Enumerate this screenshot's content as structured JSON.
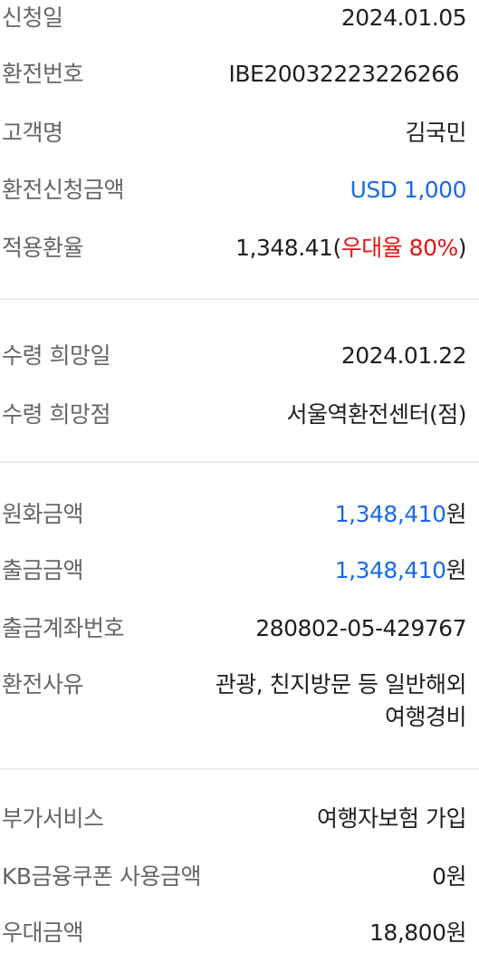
{
  "section1": {
    "apply_date_label": "신청일",
    "apply_date_value": "2024.01.05",
    "exchange_no_label": "환전번호",
    "exchange_no_value": "IBE20032223226266",
    "customer_label": "고객명",
    "customer_value": "김국민",
    "request_amount_label": "환전신청금액",
    "request_amount_value": "USD 1,000",
    "rate_label": "적용환율",
    "rate_value": "1,348.41",
    "rate_paren_open": "(",
    "rate_discount": "우대율 80%",
    "rate_paren_close": ")"
  },
  "section2": {
    "pickup_date_label": "수령 희망일",
    "pickup_date_value": "2024.01.22",
    "pickup_branch_label": "수령 희망점",
    "pickup_branch_value": "서울역환전센터(점)"
  },
  "section3": {
    "krw_amount_label": "원화금액",
    "krw_amount_number": "1,348,410",
    "krw_amount_unit": "원",
    "withdraw_amount_label": "출금금액",
    "withdraw_amount_number": "1,348,410",
    "withdraw_amount_unit": "원",
    "withdraw_account_label": "출금계좌번호",
    "withdraw_account_value": "280802-05-429767",
    "reason_label": "환전사유",
    "reason_value_line1": "관광, 친지방문 등 일반해외",
    "reason_value_line2": "여행경비"
  },
  "section4": {
    "extra_service_label": "부가서비스",
    "extra_service_value": "여행자보험 가입",
    "coupon_label": "KB금융쿠폰 사용금액",
    "coupon_value": "0원",
    "discount_label": "우대금액",
    "discount_value": "18,800원"
  },
  "colors": {
    "accent_blue": "#1a6ae6",
    "accent_red": "#e01414",
    "label_gray": "#666666",
    "divider": "#ececec"
  }
}
